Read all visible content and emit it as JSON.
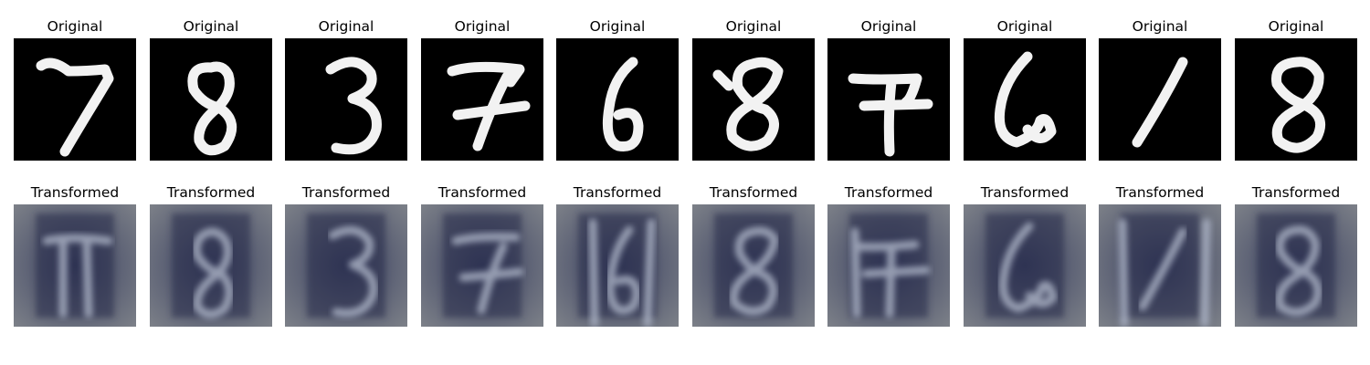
{
  "rows": [
    {
      "key": "original",
      "title": "Original",
      "background": "#000000",
      "stroke_color": "#f2f2f2",
      "digits": [
        "7",
        "8",
        "3",
        "7",
        "6",
        "8",
        "7",
        "6",
        "1",
        "8"
      ]
    },
    {
      "key": "transformed",
      "title": "Transformed",
      "background": "#3f4563",
      "stroke_color": "#aeb6c8",
      "digits": [
        "7",
        "8",
        "3",
        "7",
        "6",
        "8",
        "7",
        "6",
        "1",
        "8"
      ]
    }
  ]
}
